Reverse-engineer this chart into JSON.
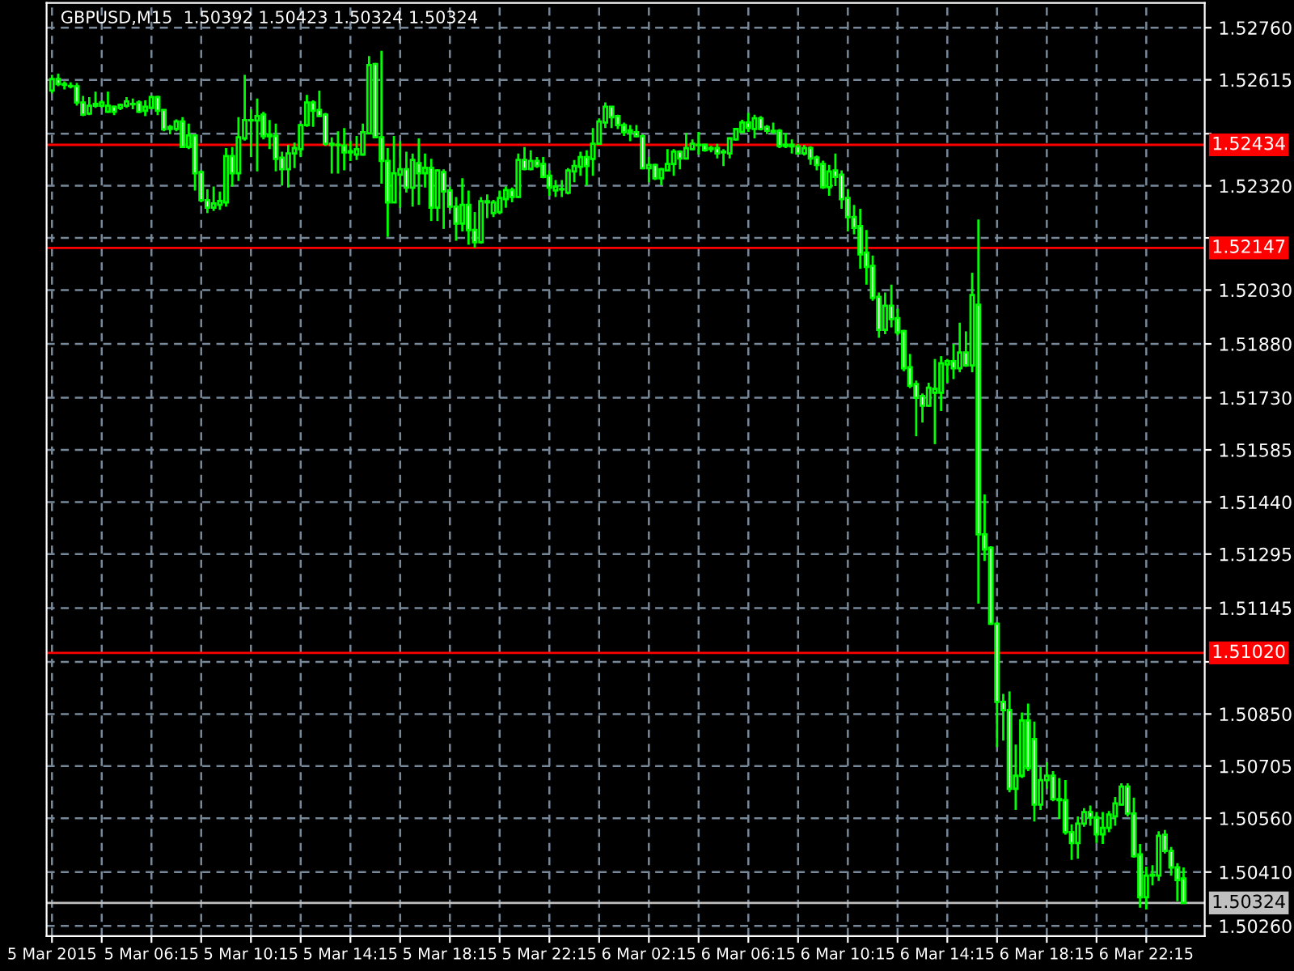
{
  "chart_data": {
    "type": "candlestick",
    "title": "GBPUSD,M15  1.50392 1.50423 1.50324 1.50324",
    "color": "#00ff00",
    "grid": true,
    "x": [
      "2015-03-05T02:15",
      "2015-03-05T02:30",
      "2015-03-05T02:45",
      "2015-03-05T03:00",
      "2015-03-05T03:15",
      "2015-03-05T03:30",
      "2015-03-05T03:45",
      "2015-03-05T04:00",
      "2015-03-05T04:15",
      "2015-03-05T04:30",
      "2015-03-05T04:45",
      "2015-03-05T05:00",
      "2015-03-05T05:15",
      "2015-03-05T05:30",
      "2015-03-05T05:45",
      "2015-03-05T06:00",
      "2015-03-05T06:15",
      "2015-03-05T06:30",
      "2015-03-05T06:45",
      "2015-03-05T07:00",
      "2015-03-05T07:15",
      "2015-03-05T07:30",
      "2015-03-05T07:45",
      "2015-03-05T08:00",
      "2015-03-05T08:15",
      "2015-03-05T08:30",
      "2015-03-05T08:45",
      "2015-03-05T09:00",
      "2015-03-05T09:15",
      "2015-03-05T09:30",
      "2015-03-05T09:45",
      "2015-03-05T10:00",
      "2015-03-05T10:15",
      "2015-03-05T10:30",
      "2015-03-05T10:45",
      "2015-03-05T11:00",
      "2015-03-05T11:15",
      "2015-03-05T11:30",
      "2015-03-05T11:45",
      "2015-03-05T12:00",
      "2015-03-05T12:15",
      "2015-03-05T12:30",
      "2015-03-05T12:45",
      "2015-03-05T13:00",
      "2015-03-05T13:15",
      "2015-03-05T13:30",
      "2015-03-05T13:45",
      "2015-03-05T14:00",
      "2015-03-05T14:15",
      "2015-03-05T14:30",
      "2015-03-05T14:45",
      "2015-03-05T15:00",
      "2015-03-05T15:15",
      "2015-03-05T15:30",
      "2015-03-05T15:45",
      "2015-03-05T16:00",
      "2015-03-05T16:15",
      "2015-03-05T16:30",
      "2015-03-05T16:45",
      "2015-03-05T17:00",
      "2015-03-05T17:15",
      "2015-03-05T17:30",
      "2015-03-05T17:45",
      "2015-03-05T18:00",
      "2015-03-05T18:15",
      "2015-03-05T18:30",
      "2015-03-05T18:45",
      "2015-03-05T19:00",
      "2015-03-05T19:15",
      "2015-03-05T19:30",
      "2015-03-05T19:45",
      "2015-03-05T20:00",
      "2015-03-05T20:15",
      "2015-03-05T20:30",
      "2015-03-05T20:45",
      "2015-03-05T21:00",
      "2015-03-05T21:15",
      "2015-03-05T21:30",
      "2015-03-05T21:45",
      "2015-03-05T22:00",
      "2015-03-05T22:15",
      "2015-03-05T22:30",
      "2015-03-05T22:45",
      "2015-03-05T23:00",
      "2015-03-05T23:15",
      "2015-03-05T23:30",
      "2015-03-05T23:45",
      "2015-03-06T00:00",
      "2015-03-06T00:15",
      "2015-03-06T00:30",
      "2015-03-06T00:45",
      "2015-03-06T01:00",
      "2015-03-06T01:15",
      "2015-03-06T01:30",
      "2015-03-06T01:45",
      "2015-03-06T02:00",
      "2015-03-06T02:15",
      "2015-03-06T02:30",
      "2015-03-06T02:45",
      "2015-03-06T03:00",
      "2015-03-06T03:15",
      "2015-03-06T03:30",
      "2015-03-06T03:45",
      "2015-03-06T04:00",
      "2015-03-06T04:15",
      "2015-03-06T04:30",
      "2015-03-06T04:45",
      "2015-03-06T05:00",
      "2015-03-06T05:15",
      "2015-03-06T05:30",
      "2015-03-06T05:45",
      "2015-03-06T06:00",
      "2015-03-06T06:15",
      "2015-03-06T06:30",
      "2015-03-06T06:45",
      "2015-03-06T07:00",
      "2015-03-06T07:15",
      "2015-03-06T07:30",
      "2015-03-06T07:45",
      "2015-03-06T08:00",
      "2015-03-06T08:15",
      "2015-03-06T08:30",
      "2015-03-06T08:45",
      "2015-03-06T09:00",
      "2015-03-06T09:15",
      "2015-03-06T09:30",
      "2015-03-06T09:45",
      "2015-03-06T10:00",
      "2015-03-06T10:15",
      "2015-03-06T10:30",
      "2015-03-06T10:45",
      "2015-03-06T11:00",
      "2015-03-06T11:15",
      "2015-03-06T11:30",
      "2015-03-06T11:45",
      "2015-03-06T12:00",
      "2015-03-06T12:15",
      "2015-03-06T12:30",
      "2015-03-06T12:45",
      "2015-03-06T13:00",
      "2015-03-06T13:15",
      "2015-03-06T13:30",
      "2015-03-06T13:45",
      "2015-03-06T14:00",
      "2015-03-06T14:15",
      "2015-03-06T14:30",
      "2015-03-06T14:45",
      "2015-03-06T15:00",
      "2015-03-06T15:15",
      "2015-03-06T15:30",
      "2015-03-06T15:45",
      "2015-03-06T16:00",
      "2015-03-06T16:15",
      "2015-03-06T16:30",
      "2015-03-06T16:45",
      "2015-03-06T17:00",
      "2015-03-06T17:15",
      "2015-03-06T17:30",
      "2015-03-06T17:45",
      "2015-03-06T18:00",
      "2015-03-06T18:15",
      "2015-03-06T18:30",
      "2015-03-06T18:45",
      "2015-03-06T19:00",
      "2015-03-06T19:15",
      "2015-03-06T19:30",
      "2015-03-06T19:45",
      "2015-03-06T20:00",
      "2015-03-06T20:15",
      "2015-03-06T20:30",
      "2015-03-06T20:45",
      "2015-03-06T21:00",
      "2015-03-06T21:15",
      "2015-03-06T21:30",
      "2015-03-06T21:45",
      "2015-03-06T22:00",
      "2015-03-06T22:15",
      "2015-03-06T22:30",
      "2015-03-06T22:45",
      "2015-03-06T23:00",
      "2015-03-06T23:15",
      "2015-03-06T23:30",
      "2015-03-06T23:45"
    ],
    "ohlc": [
      [
        1.52585,
        1.52629,
        1.52577,
        1.52617
      ],
      [
        1.52617,
        1.52632,
        1.52597,
        1.52603
      ],
      [
        1.52603,
        1.52611,
        1.52588,
        1.52601
      ],
      [
        1.52597,
        1.52608,
        1.52591,
        1.52598
      ],
      [
        1.52597,
        1.52606,
        1.52543,
        1.52552
      ],
      [
        1.52552,
        1.5257,
        1.52514,
        1.52518
      ],
      [
        1.52521,
        1.52567,
        1.52517,
        1.52543
      ],
      [
        1.52543,
        1.52582,
        1.52537,
        1.52548
      ],
      [
        1.52543,
        1.52558,
        1.52537,
        1.52552
      ],
      [
        1.52526,
        1.52582,
        1.52523,
        1.52543
      ],
      [
        1.5254,
        1.52543,
        1.52517,
        1.52526
      ],
      [
        1.52537,
        1.52549,
        1.52531,
        1.52545
      ],
      [
        1.52543,
        1.52567,
        1.52537,
        1.52555
      ],
      [
        1.52548,
        1.52563,
        1.52533,
        1.52547
      ],
      [
        1.52552,
        1.52558,
        1.52523,
        1.52526
      ],
      [
        1.52529,
        1.52558,
        1.52514,
        1.5254
      ],
      [
        1.52537,
        1.5257,
        1.52534,
        1.52567
      ],
      [
        1.52567,
        1.5257,
        1.52517,
        1.52529
      ],
      [
        1.52531,
        1.52531,
        1.52472,
        1.52477
      ],
      [
        1.52484,
        1.52489,
        1.52463,
        1.52478
      ],
      [
        1.52478,
        1.52505,
        1.52472,
        1.52499
      ],
      [
        1.52499,
        1.52511,
        1.52425,
        1.52428
      ],
      [
        1.52428,
        1.52493,
        1.52422,
        1.5246
      ],
      [
        1.5246,
        1.52463,
        1.52307,
        1.52355
      ],
      [
        1.52358,
        1.52363,
        1.52274,
        1.5228
      ],
      [
        1.5228,
        1.5231,
        1.52244,
        1.52259
      ],
      [
        1.52259,
        1.52318,
        1.5225,
        1.52271
      ],
      [
        1.52267,
        1.52304,
        1.52253,
        1.52278
      ],
      [
        1.52274,
        1.52425,
        1.52262,
        1.52403
      ],
      [
        1.52403,
        1.52428,
        1.52318,
        1.52355
      ],
      [
        1.52355,
        1.52511,
        1.52333,
        1.52455
      ],
      [
        1.52452,
        1.52629,
        1.52446,
        1.52503
      ],
      [
        1.52503,
        1.52533,
        1.524,
        1.52502
      ],
      [
        1.52502,
        1.52563,
        1.5236,
        1.52514
      ],
      [
        1.52518,
        1.52526,
        1.52449,
        1.52458
      ],
      [
        1.52458,
        1.52503,
        1.52422,
        1.52463
      ],
      [
        1.52459,
        1.52493,
        1.5236,
        1.52395
      ],
      [
        1.52398,
        1.52415,
        1.52321,
        1.52366
      ],
      [
        1.52366,
        1.52434,
        1.52315,
        1.5241
      ],
      [
        1.5241,
        1.5244,
        1.52369,
        1.52425
      ],
      [
        1.52422,
        1.52493,
        1.52401,
        1.52489
      ],
      [
        1.52489,
        1.52573,
        1.52484,
        1.52552
      ],
      [
        1.52552,
        1.52558,
        1.52484,
        1.52529
      ],
      [
        1.52531,
        1.52585,
        1.52511,
        1.52514
      ],
      [
        1.52518,
        1.52523,
        1.52431,
        1.52437
      ],
      [
        1.52437,
        1.52455,
        1.52354,
        1.52434
      ],
      [
        1.52434,
        1.52472,
        1.52354,
        1.52433
      ],
      [
        1.52432,
        1.52481,
        1.52363,
        1.52413
      ],
      [
        1.52413,
        1.52444,
        1.52389,
        1.52416
      ],
      [
        1.52407,
        1.52459,
        1.52392,
        1.52422
      ],
      [
        1.52407,
        1.52493,
        1.52404,
        1.52469
      ],
      [
        1.52466,
        1.52681,
        1.52463,
        1.52656
      ],
      [
        1.52659,
        1.52662,
        1.52452,
        1.52455
      ],
      [
        1.52455,
        1.52696,
        1.52326,
        1.52389
      ],
      [
        1.52389,
        1.52425,
        1.52178,
        1.52274
      ],
      [
        1.52274,
        1.52459,
        1.52274,
        1.52355
      ],
      [
        1.52351,
        1.52444,
        1.52259,
        1.52366
      ],
      [
        1.52366,
        1.52415,
        1.52301,
        1.52315
      ],
      [
        1.52315,
        1.5241,
        1.52262,
        1.52392
      ],
      [
        1.52383,
        1.52452,
        1.52267,
        1.52355
      ],
      [
        1.52355,
        1.5241,
        1.52315,
        1.5237
      ],
      [
        1.5237,
        1.52395,
        1.52222,
        1.52259
      ],
      [
        1.52259,
        1.52366,
        1.52222,
        1.52363
      ],
      [
        1.52358,
        1.52366,
        1.522,
        1.52304
      ],
      [
        1.52307,
        1.52318,
        1.52252,
        1.52262
      ],
      [
        1.52262,
        1.52289,
        1.52167,
        1.52215
      ],
      [
        1.52215,
        1.52341,
        1.52193,
        1.52267
      ],
      [
        1.52267,
        1.52307,
        1.52156,
        1.52197
      ],
      [
        1.52197,
        1.52247,
        1.52148,
        1.52163
      ],
      [
        1.52163,
        1.52289,
        1.52159,
        1.52277
      ],
      [
        1.52277,
        1.52296,
        1.5223,
        1.52274
      ],
      [
        1.52244,
        1.52281,
        1.52233,
        1.52274
      ],
      [
        1.52247,
        1.52307,
        1.52241,
        1.52286
      ],
      [
        1.52283,
        1.52318,
        1.52259,
        1.52308
      ],
      [
        1.52308,
        1.52315,
        1.52274,
        1.52289
      ],
      [
        1.52289,
        1.5241,
        1.52286,
        1.52392
      ],
      [
        1.52392,
        1.52428,
        1.52363,
        1.52367
      ],
      [
        1.52367,
        1.52419,
        1.52363,
        1.52389
      ],
      [
        1.52389,
        1.524,
        1.5237,
        1.52375
      ],
      [
        1.52381,
        1.524,
        1.52341,
        1.52345
      ],
      [
        1.52348,
        1.52363,
        1.52292,
        1.52315
      ],
      [
        1.52307,
        1.52336,
        1.52289,
        1.52318
      ],
      [
        1.52311,
        1.52336,
        1.52289,
        1.5231
      ],
      [
        1.52301,
        1.52369,
        1.52296,
        1.52363
      ],
      [
        1.5236,
        1.52392,
        1.5233,
        1.52375
      ],
      [
        1.52373,
        1.52415,
        1.52348,
        1.524
      ],
      [
        1.524,
        1.52419,
        1.52321,
        1.52375
      ],
      [
        1.52395,
        1.52481,
        1.52348,
        1.52437
      ],
      [
        1.52437,
        1.52508,
        1.52434,
        1.52499
      ],
      [
        1.52496,
        1.52552,
        1.52481,
        1.5254
      ],
      [
        1.5254,
        1.5254,
        1.52481,
        1.52511
      ],
      [
        1.52514,
        1.52518,
        1.52478,
        1.52489
      ],
      [
        1.52489,
        1.52496,
        1.52459,
        1.52469
      ],
      [
        1.52474,
        1.52489,
        1.52444,
        1.5247
      ],
      [
        1.52469,
        1.52489,
        1.52455,
        1.52458
      ],
      [
        1.52458,
        1.52463,
        1.52366,
        1.52369
      ],
      [
        1.52369,
        1.524,
        1.5233,
        1.52378
      ],
      [
        1.52378,
        1.52381,
        1.52336,
        1.52341
      ],
      [
        1.52341,
        1.5237,
        1.52322,
        1.52366
      ],
      [
        1.52363,
        1.52422,
        1.5236,
        1.52381
      ],
      [
        1.52381,
        1.52422,
        1.52348,
        1.52415
      ],
      [
        1.52415,
        1.52419,
        1.52366,
        1.52396
      ],
      [
        1.52396,
        1.52467,
        1.52393,
        1.52425
      ],
      [
        1.52422,
        1.52449,
        1.52419,
        1.52437
      ],
      [
        1.52434,
        1.5247,
        1.52407,
        1.52433
      ],
      [
        1.52434,
        1.52437,
        1.52415,
        1.52419
      ],
      [
        1.52425,
        1.52431,
        1.52413,
        1.52422
      ],
      [
        1.52425,
        1.52437,
        1.52396,
        1.5241
      ],
      [
        1.52415,
        1.52422,
        1.52375,
        1.52413
      ],
      [
        1.5241,
        1.52455,
        1.52396,
        1.52452
      ],
      [
        1.52449,
        1.52481,
        1.52446,
        1.52478
      ],
      [
        1.5247,
        1.52504,
        1.52467,
        1.52496
      ],
      [
        1.52496,
        1.52523,
        1.5247,
        1.52481
      ],
      [
        1.52478,
        1.52518,
        1.52452,
        1.52508
      ],
      [
        1.52508,
        1.52514,
        1.52474,
        1.52478
      ],
      [
        1.52484,
        1.52489,
        1.52464,
        1.52473
      ],
      [
        1.52473,
        1.52496,
        1.52464,
        1.52471
      ],
      [
        1.52473,
        1.52478,
        1.52425,
        1.52431
      ],
      [
        1.52431,
        1.52467,
        1.52425,
        1.52434
      ],
      [
        1.52434,
        1.52449,
        1.5241,
        1.5243
      ],
      [
        1.5243,
        1.52437,
        1.52407,
        1.5241
      ],
      [
        1.5241,
        1.52434,
        1.52404,
        1.52425
      ],
      [
        1.52425,
        1.5243,
        1.52378,
        1.52396
      ],
      [
        1.52399,
        1.52404,
        1.52363,
        1.52378
      ],
      [
        1.52381,
        1.5239,
        1.52311,
        1.52316
      ],
      [
        1.52316,
        1.52378,
        1.52292,
        1.5236
      ],
      [
        1.52363,
        1.5241,
        1.52319,
        1.52345
      ],
      [
        1.52351,
        1.52363,
        1.52256,
        1.52283
      ],
      [
        1.52286,
        1.52311,
        1.52193,
        1.52233
      ],
      [
        1.52233,
        1.52267,
        1.52185,
        1.52203
      ],
      [
        1.52208,
        1.52256,
        1.52089,
        1.52129
      ],
      [
        1.52134,
        1.52197,
        1.52045,
        1.52094
      ],
      [
        1.52097,
        1.52126,
        1.52,
        1.52008
      ],
      [
        1.52011,
        1.52023,
        1.51897,
        1.51919
      ],
      [
        1.51919,
        1.52023,
        1.51907,
        1.51986
      ],
      [
        1.51986,
        1.52045,
        1.51926,
        1.51949
      ],
      [
        1.51952,
        1.51978,
        1.51904,
        1.51912
      ],
      [
        1.51916,
        1.51919,
        1.51804,
        1.51812
      ],
      [
        1.51815,
        1.51852,
        1.51757,
        1.51764
      ],
      [
        1.51768,
        1.51778,
        1.51623,
        1.5173
      ],
      [
        1.51735,
        1.51742,
        1.51661,
        1.51708
      ],
      [
        1.51708,
        1.51772,
        1.51705,
        1.51758
      ],
      [
        1.51744,
        1.51838,
        1.51601,
        1.51755
      ],
      [
        1.51744,
        1.51846,
        1.51693,
        1.51826
      ],
      [
        1.51823,
        1.51838,
        1.51772,
        1.51832
      ],
      [
        1.51832,
        1.5188,
        1.51782,
        1.51812
      ],
      [
        1.51812,
        1.51939,
        1.51801,
        1.51856
      ],
      [
        1.51856,
        1.51915,
        1.51816,
        1.5182
      ],
      [
        1.5182,
        1.52078,
        1.51801,
        1.52016
      ],
      [
        1.51989,
        1.52226,
        1.51157,
        1.5135
      ],
      [
        1.5135,
        1.51461,
        1.51276,
        1.51308
      ],
      [
        1.51313,
        1.51317,
        1.51098,
        1.51101
      ],
      [
        1.51101,
        1.51106,
        1.50758,
        1.50884
      ],
      [
        1.50884,
        1.50906,
        1.50776,
        1.50861
      ],
      [
        1.50861,
        1.50913,
        1.50632,
        1.50642
      ],
      [
        1.50642,
        1.50765,
        1.50583,
        1.50678
      ],
      [
        1.50678,
        1.50854,
        1.50672,
        1.50832
      ],
      [
        1.50832,
        1.50879,
        1.50691,
        1.50699
      ],
      [
        1.5078,
        1.50829,
        1.50551,
        1.50598
      ],
      [
        1.50598,
        1.50702,
        1.50583,
        1.50666
      ],
      [
        1.50666,
        1.50716,
        1.50642,
        1.50678
      ],
      [
        1.50678,
        1.50691,
        1.50607,
        1.50613
      ],
      [
        1.50613,
        1.50672,
        1.50558,
        1.5061
      ],
      [
        1.5061,
        1.50666,
        1.50514,
        1.50521
      ],
      [
        1.50521,
        1.50543,
        1.50444,
        1.50491
      ],
      [
        1.50491,
        1.50565,
        1.50447,
        1.50545
      ],
      [
        1.50545,
        1.50588,
        1.50536,
        1.50577
      ],
      [
        1.50577,
        1.50595,
        1.50539,
        1.50562
      ],
      [
        1.50562,
        1.50577,
        1.50491,
        1.50515
      ],
      [
        1.50515,
        1.50577,
        1.50488,
        1.50533
      ],
      [
        1.50533,
        1.5058,
        1.50521,
        1.5057
      ],
      [
        1.50565,
        1.50619,
        1.50539,
        1.50601
      ],
      [
        1.50598,
        1.50657,
        1.50595,
        1.50648
      ],
      [
        1.50648,
        1.50657,
        1.50565,
        1.50573
      ],
      [
        1.50573,
        1.50617,
        1.5045,
        1.50454
      ],
      [
        1.50459,
        1.50488,
        1.50311,
        1.5034
      ],
      [
        1.5034,
        1.50425,
        1.50306,
        1.504
      ],
      [
        1.504,
        1.50429,
        1.50373,
        1.50403
      ],
      [
        1.504,
        1.50524,
        1.50385,
        1.50511
      ],
      [
        1.50514,
        1.50527,
        1.50462,
        1.50469
      ],
      [
        1.50469,
        1.5048,
        1.504,
        1.50423
      ],
      [
        1.50423,
        1.50435,
        1.50329,
        1.50388
      ],
      [
        1.50392,
        1.50423,
        1.50324,
        1.50324
      ]
    ],
    "xlim": [
      "2015-03-05T02:02",
      "2015-03-07T00:36"
    ],
    "xticks": [
      {
        "value": "2015-03-05T02:15",
        "label": "5 Mar 2015"
      },
      {
        "value": "2015-03-05T04:15",
        "label": null
      },
      {
        "value": "2015-03-05T06:15",
        "label": "5 Mar 06:15"
      },
      {
        "value": "2015-03-05T08:15",
        "label": null
      },
      {
        "value": "2015-03-05T10:15",
        "label": "5 Mar 10:15"
      },
      {
        "value": "2015-03-05T12:15",
        "label": null
      },
      {
        "value": "2015-03-05T14:15",
        "label": "5 Mar 14:15"
      },
      {
        "value": "2015-03-05T16:15",
        "label": null
      },
      {
        "value": "2015-03-05T18:15",
        "label": "5 Mar 18:15"
      },
      {
        "value": "2015-03-05T20:15",
        "label": null
      },
      {
        "value": "2015-03-05T22:15",
        "label": "5 Mar 22:15"
      },
      {
        "value": "2015-03-06T00:15",
        "label": null
      },
      {
        "value": "2015-03-06T02:15",
        "label": "6 Mar 02:15"
      },
      {
        "value": "2015-03-06T04:15",
        "label": null
      },
      {
        "value": "2015-03-06T06:15",
        "label": "6 Mar 06:15"
      },
      {
        "value": "2015-03-06T08:15",
        "label": null
      },
      {
        "value": "2015-03-06T10:15",
        "label": "6 Mar 10:15"
      },
      {
        "value": "2015-03-06T12:15",
        "label": null
      },
      {
        "value": "2015-03-06T14:15",
        "label": "6 Mar 14:15"
      },
      {
        "value": "2015-03-06T16:15",
        "label": null
      },
      {
        "value": "2015-03-06T18:15",
        "label": "6 Mar 18:15"
      },
      {
        "value": "2015-03-06T20:15",
        "label": null
      },
      {
        "value": "2015-03-06T22:15",
        "label": "6 Mar 22:15"
      }
    ],
    "ylim": [
      1.50232,
      1.52829
    ],
    "yticks": [
      {
        "value": 1.5276,
        "label": "1.52760"
      },
      {
        "value": 1.52615,
        "label": "1.52615"
      },
      {
        "value": 1.52465,
        "label": null
      },
      {
        "value": 1.5232,
        "label": "1.52320"
      },
      {
        "value": 1.52175,
        "label": null
      },
      {
        "value": 1.5203,
        "label": "1.52030"
      },
      {
        "value": 1.5188,
        "label": "1.51880"
      },
      {
        "value": 1.5173,
        "label": "1.51730"
      },
      {
        "value": 1.51585,
        "label": "1.51585"
      },
      {
        "value": 1.5144,
        "label": "1.51440"
      },
      {
        "value": 1.51295,
        "label": "1.51295"
      },
      {
        "value": 1.51145,
        "label": "1.51145"
      },
      {
        "value": 1.50995,
        "label": null
      },
      {
        "value": 1.5085,
        "label": "1.50850"
      },
      {
        "value": 1.50705,
        "label": "1.50705"
      },
      {
        "value": 1.5056,
        "label": "1.50560"
      },
      {
        "value": 1.5041,
        "label": "1.50410"
      },
      {
        "value": 1.5026,
        "label": "1.50260"
      }
    ],
    "ref_lines": [
      {
        "axis": "y",
        "value": 1.52434,
        "label": "1.52434",
        "color": "#ff0000"
      },
      {
        "axis": "y",
        "value": 1.52147,
        "label": "1.52147",
        "color": "#ff0000"
      },
      {
        "axis": "y",
        "value": 1.5102,
        "label": "1.51020",
        "color": "#ff0000"
      },
      {
        "axis": "y",
        "value": 1.50324,
        "label": "1.50324",
        "color": "#c0c0c0"
      }
    ]
  }
}
